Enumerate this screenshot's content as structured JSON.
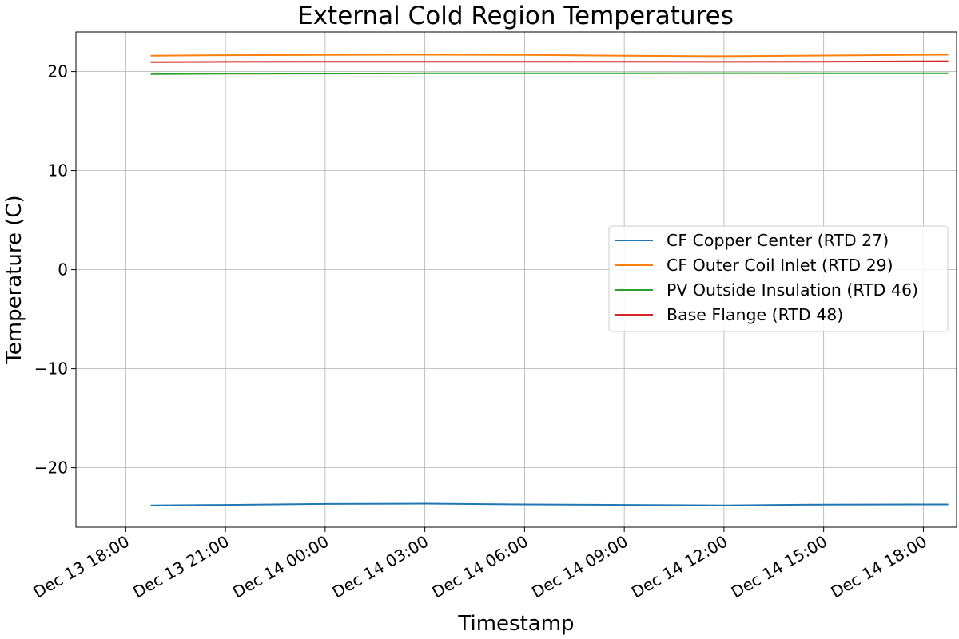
{
  "chart_data": {
    "type": "line",
    "title": "External Cold Region Temperatures",
    "xlabel": "Timestamp",
    "ylabel": "Temperature (C)",
    "xlim": [
      "2023-12-13 16:30",
      "2023-12-14 19:00"
    ],
    "ylim": [
      -26.0,
      24.0
    ],
    "xticks": [
      {
        "label": "Dec 13 18:00",
        "value": "2023-12-13 18:00"
      },
      {
        "label": "Dec 13 21:00",
        "value": "2023-12-13 21:00"
      },
      {
        "label": "Dec 14 00:00",
        "value": "2023-12-14 00:00"
      },
      {
        "label": "Dec 14 03:00",
        "value": "2023-12-14 03:00"
      },
      {
        "label": "Dec 14 06:00",
        "value": "2023-12-14 06:00"
      },
      {
        "label": "Dec 14 09:00",
        "value": "2023-12-14 09:00"
      },
      {
        "label": "Dec 14 12:00",
        "value": "2023-12-14 12:00"
      },
      {
        "label": "Dec 14 15:00",
        "value": "2023-12-14 15:00"
      },
      {
        "label": "Dec 14 18:00",
        "value": "2023-12-14 18:00"
      }
    ],
    "yticks": [
      {
        "label": "20",
        "value": 20
      },
      {
        "label": "10",
        "value": 10
      },
      {
        "label": "0",
        "value": 0
      },
      {
        "label": "−10",
        "value": -10
      },
      {
        "label": "−20",
        "value": -20
      }
    ],
    "grid": true,
    "legend_position": "center-right",
    "x": [
      "2023-12-13 18:45",
      "2023-12-13 21:00",
      "2023-12-14 00:00",
      "2023-12-14 03:00",
      "2023-12-14 06:00",
      "2023-12-14 09:00",
      "2023-12-14 12:00",
      "2023-12-14 15:00",
      "2023-12-14 18:45"
    ],
    "series": [
      {
        "name": "CF Copper Center (RTD 27)",
        "color": "#1f77b4",
        "values": [
          -23.8,
          -23.75,
          -23.65,
          -23.62,
          -23.7,
          -23.75,
          -23.8,
          -23.72,
          -23.7
        ]
      },
      {
        "name": "CF Outer Coil Inlet (RTD 29)",
        "color": "#ff7f0e",
        "values": [
          21.6,
          21.65,
          21.68,
          21.7,
          21.68,
          21.6,
          21.55,
          21.62,
          21.7
        ]
      },
      {
        "name": "PV Outside Insulation (RTD 46)",
        "color": "#2ca02c",
        "values": [
          19.75,
          19.78,
          19.8,
          19.82,
          19.83,
          19.83,
          19.84,
          19.83,
          19.83
        ]
      },
      {
        "name": "Base Flange (RTD 48)",
        "color": "#d62728",
        "values": [
          20.95,
          20.98,
          21.0,
          21.0,
          21.0,
          21.0,
          20.98,
          21.0,
          21.05
        ]
      }
    ]
  }
}
